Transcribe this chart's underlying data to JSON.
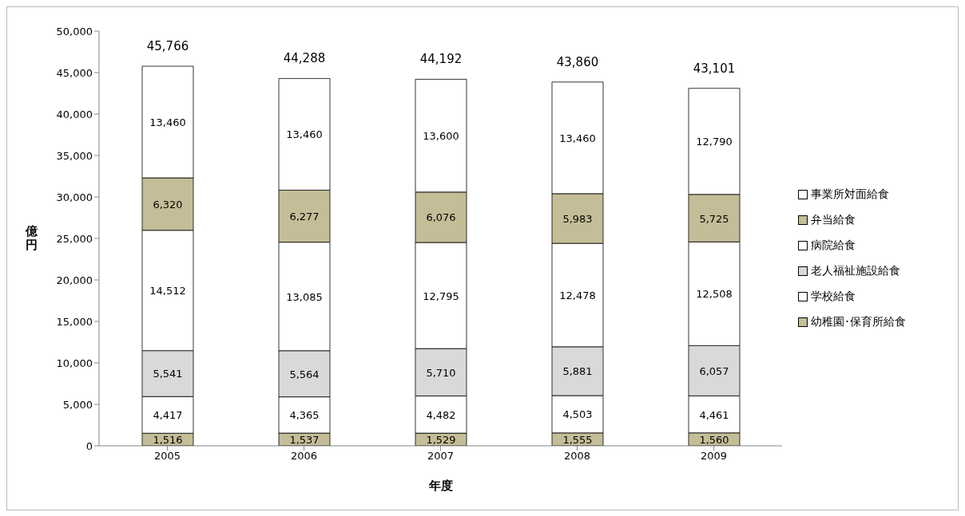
{
  "chart_data": {
    "type": "bar",
    "stacked": true,
    "xlabel": "年度",
    "ylabel": "億円",
    "categories": [
      "2005",
      "2006",
      "2007",
      "2008",
      "2009"
    ],
    "series": [
      {
        "name": "幼稚園･保育所給食",
        "color": "#c4bd97",
        "values": [
          1516,
          1537,
          1529,
          1555,
          1560
        ],
        "value_labels": [
          "1,516",
          "1,537",
          "1,529",
          "1,555",
          "1,560"
        ]
      },
      {
        "name": "学校給食",
        "color": "#ffffff",
        "values": [
          4417,
          4365,
          4482,
          4503,
          4461
        ],
        "value_labels": [
          "4,417",
          "4,365",
          "4,482",
          "4,503",
          "4,461"
        ]
      },
      {
        "name": "老人福祉施設給食",
        "color": "#d9d9d9",
        "values": [
          5541,
          5564,
          5710,
          5881,
          6057
        ],
        "value_labels": [
          "5,541",
          "5,564",
          "5,710",
          "5,881",
          "6,057"
        ]
      },
      {
        "name": "病院給食",
        "color": "#ffffff",
        "values": [
          14512,
          13085,
          12795,
          12478,
          12508
        ],
        "value_labels": [
          "14,512",
          "13,085",
          "12,795",
          "12,478",
          "12,508"
        ]
      },
      {
        "name": "弁当給食",
        "color": "#c4bd97",
        "values": [
          6320,
          6277,
          6076,
          5983,
          5725
        ],
        "value_labels": [
          "6,320",
          "6,277",
          "6,076",
          "5,983",
          "5,725"
        ]
      },
      {
        "name": "事業所対面給食",
        "color": "#ffffff",
        "values": [
          13460,
          13460,
          13600,
          13460,
          12790
        ],
        "value_labels": [
          "13,460",
          "13,460",
          "13,600",
          "13,460",
          "12,790"
        ]
      }
    ],
    "totals": [
      "45,766",
      "44,288",
      "44,192",
      "43,860",
      "43,101"
    ],
    "ylim": [
      0,
      50000
    ],
    "yticks": [
      0,
      {
        "value": 5000,
        "label": "5,000"
      },
      {
        "value": 10000,
        "label": "10,000"
      },
      {
        "value": 15000,
        "label": "15,000"
      },
      {
        "value": 20000,
        "label": "20,000"
      },
      {
        "value": 25000,
        "label": "25,000"
      },
      {
        "value": 30000,
        "label": "30,000"
      },
      {
        "value": 35000,
        "label": "35,000"
      },
      {
        "value": 40000,
        "label": "40,000"
      },
      {
        "value": 45000,
        "label": "45,000"
      },
      {
        "value": 50000,
        "label": "50,000"
      }
    ],
    "grid": false,
    "legend": "right"
  }
}
